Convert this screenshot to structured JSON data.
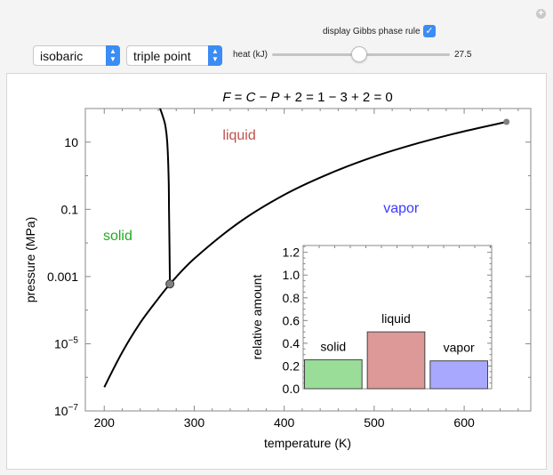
{
  "controls": {
    "gibbs_label": "display Gibbs phase rule",
    "gibbs_checked": true,
    "mode_select": "isobaric",
    "point_select": "triple point",
    "heat_label": "heat (kJ)",
    "heat_value": "27.5",
    "heat_fraction": 0.49
  },
  "chart_data": [
    {
      "type": "line",
      "title_parts": [
        "F",
        " = ",
        "C",
        " − ",
        "P",
        " + 2 = 1 − 3 + 2 = 0"
      ],
      "xlabel": "temperature (K)",
      "ylabel": "pressure (MPa)",
      "xlim": [
        179,
        674
      ],
      "ylim": [
        1e-07,
        100
      ],
      "y_scale": "log",
      "x_ticks": [
        "200",
        "300",
        "400",
        "500",
        "600"
      ],
      "x_tick_values": [
        200,
        300,
        400,
        500,
        600
      ],
      "y_ticks": [
        {
          "value": 10,
          "base": "10",
          "exp": ""
        },
        {
          "value": 0.1,
          "base": "0.1",
          "exp": ""
        },
        {
          "value": 0.001,
          "base": "0.001",
          "exp": ""
        },
        {
          "value": 1e-05,
          "base": "10",
          "exp": "−5"
        },
        {
          "value": 1e-07,
          "base": "10",
          "exp": "−7"
        }
      ],
      "region_labels": [
        {
          "text": "solid",
          "color": "#22aa22",
          "T": 215,
          "P": 0.012
        },
        {
          "text": "liquid",
          "color": "#c0504d",
          "T": 350,
          "P": 12
        },
        {
          "text": "vapor",
          "color": "#3b3bff",
          "T": 530,
          "P": 0.08
        }
      ],
      "series": [
        {
          "points": [
            [
              200,
              5.1e-07
            ],
            [
              220,
              5.6e-06
            ],
            [
              240,
              4.2e-05
            ],
            [
              260,
              0.00022
            ],
            [
              273,
              0.0006
            ]
          ]
        },
        {
          "points": [
            [
              273,
              0.0006
            ],
            [
              300,
              0.0034
            ],
            [
              350,
              0.041
            ],
            [
              400,
              0.27
            ],
            [
              450,
              1.15
            ],
            [
              500,
              3.7
            ],
            [
              550,
              9.5
            ],
            [
              600,
              21
            ],
            [
              647,
              40
            ]
          ]
        },
        {
          "points": [
            [
              273,
              0.0006
            ],
            [
              272,
              0.1
            ],
            [
              271.5,
              1
            ],
            [
              270,
              10
            ],
            [
              268,
              30
            ],
            [
              265,
              60
            ],
            [
              262,
              100
            ]
          ]
        }
      ],
      "markers": [
        {
          "name": "triple point",
          "T": 273,
          "P": 0.0006
        },
        {
          "name": "critical point",
          "T": 647,
          "P": 40
        }
      ]
    },
    {
      "type": "bar",
      "ylabel": "relative amount",
      "ylim": [
        0,
        1.26
      ],
      "y_ticks": [
        "0.0",
        "0.2",
        "0.4",
        "0.6",
        "0.8",
        "1.0",
        "1.2"
      ],
      "categories": [
        "solid",
        "liquid",
        "vapor"
      ],
      "values": [
        0.255,
        0.5,
        0.245
      ],
      "colors": [
        "#99dd99",
        "#dd9898",
        "#a8a8ff"
      ]
    }
  ]
}
